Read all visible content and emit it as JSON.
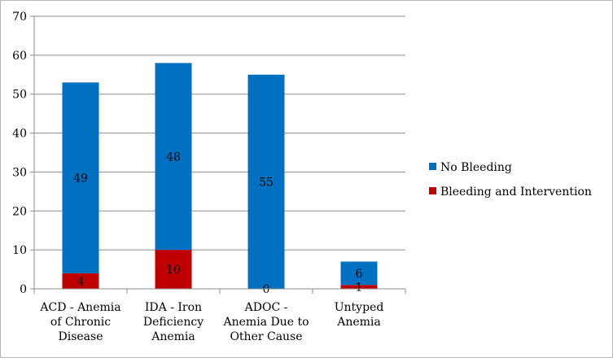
{
  "chart_data": {
    "type": "bar",
    "stacked": true,
    "categories": [
      [
        "ACD - Anemia",
        "of Chronic",
        "Disease"
      ],
      [
        "IDA - Iron",
        "Deficiency",
        "Anemia"
      ],
      [
        "ADOC -",
        "Anemia Due to",
        "Other Cause"
      ],
      [
        "Untyped",
        "Anemia"
      ]
    ],
    "series": [
      {
        "name": "Bleeding and Intervention",
        "color": "#c00000",
        "values": [
          4,
          10,
          0,
          1
        ]
      },
      {
        "name": "No Bleeding",
        "color": "#0070c0",
        "values": [
          49,
          48,
          55,
          6
        ]
      }
    ],
    "ylim": [
      0,
      70
    ],
    "yticks": [
      0,
      10,
      20,
      30,
      40,
      50,
      60,
      70
    ],
    "grid": true,
    "legend_position": "right"
  }
}
